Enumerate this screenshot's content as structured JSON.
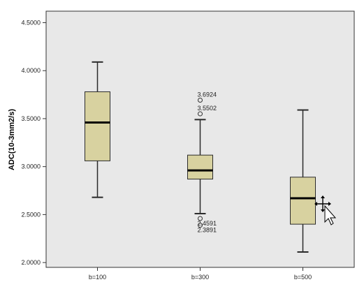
{
  "chart_data": {
    "type": "boxplot",
    "ylabel": "ADC(10-3mm2/s)",
    "xlabel": "",
    "ylim": [
      1.95,
      4.62
    ],
    "yticks": [
      2.0,
      2.5,
      3.0,
      3.5,
      4.0,
      4.5
    ],
    "ytick_labels": [
      "2.0000",
      "2.5000",
      "3.0000",
      "3.5000",
      "4.0000",
      "4.5000"
    ],
    "categories": [
      "b=100",
      "b=300",
      "b=500"
    ],
    "boxes": [
      {
        "category": "b=100",
        "whisker_low": 2.68,
        "q1": 3.06,
        "median": 3.46,
        "q3": 3.78,
        "whisker_high": 4.09,
        "outliers": []
      },
      {
        "category": "b=300",
        "whisker_low": 2.51,
        "q1": 2.87,
        "median": 2.96,
        "q3": 3.12,
        "whisker_high": 3.49,
        "outliers": [
          {
            "value": 3.6924,
            "label": "3.6924"
          },
          {
            "value": 3.5502,
            "label": "3.5502"
          },
          {
            "value": 2.4591,
            "label": "2.4591"
          },
          {
            "value": 2.3891,
            "label": "2.3891"
          }
        ]
      },
      {
        "category": "b=500",
        "whisker_low": 2.11,
        "q1": 2.4,
        "median": 2.67,
        "q3": 2.89,
        "whisker_high": 3.59,
        "outliers": []
      }
    ],
    "grid": false,
    "colors": {
      "plot_background": "#e8e8e8",
      "box_fill": "#d8d2a0",
      "box_stroke": "#2b2b2b"
    }
  }
}
